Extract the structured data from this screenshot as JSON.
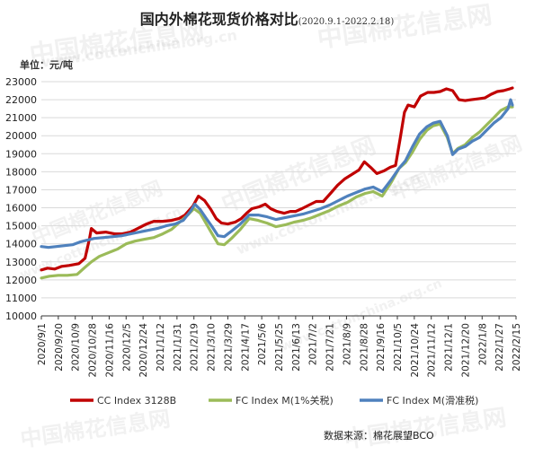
{
  "watermarks": [
    "中国棉花信息网",
    "www.cottonchina.org.cn"
  ],
  "title": "国内外棉花现货价格对比",
  "subtitle": "(2020.9.1-2022.2.18)",
  "unit_label": "单位：元/吨",
  "source": "数据来源：棉花展望BCO",
  "colors": {
    "cc": "#c00000",
    "fc1": "#9bbb59",
    "fcs": "#4f81bd",
    "axis": "#333333",
    "grid": "#d9d9d9"
  },
  "chart_data": {
    "type": "line",
    "title": "国内外棉花现货价格对比",
    "subtitle": "(2020.9.1-2022.2.18)",
    "ylabel": "单位：元/吨",
    "ylim": [
      10000,
      23000
    ],
    "yticks": [
      10000,
      11000,
      12000,
      13000,
      14000,
      15000,
      16000,
      17000,
      18000,
      19000,
      20000,
      21000,
      22000,
      23000
    ],
    "xlim": [
      "2020-09-01",
      "2022-02-15"
    ],
    "xticks": [
      "2020/9/1",
      "2020/9/20",
      "2020/10/9",
      "2020/10/28",
      "2020/11/16",
      "2020/12/5",
      "2020/12/24",
      "2021/1/12",
      "2021/1/31",
      "2021/2/19",
      "2021/3/10",
      "2021/3/29",
      "2021/4/17",
      "2021/5/6",
      "2021/5/25",
      "2021/6/13",
      "2021/7/2",
      "2021/7/21",
      "2021/8/9",
      "2021/8/28",
      "2021/9/16",
      "2021/10/5",
      "2021/10/24",
      "2021/11/12",
      "2021/12/1",
      "2021/12/20",
      "2022/1/8",
      "2022/1/27",
      "2022/2/15"
    ],
    "grid": "horizontal",
    "legend_position": "bottom",
    "series": [
      {
        "name": "CC Index 3128B",
        "color": "#c00000",
        "points": [
          [
            "2020-09-01",
            12550
          ],
          [
            "2020-09-08",
            12650
          ],
          [
            "2020-09-16",
            12600
          ],
          [
            "2020-09-24",
            12750
          ],
          [
            "2020-10-02",
            12800
          ],
          [
            "2020-10-13",
            12900
          ],
          [
            "2020-10-20",
            13200
          ],
          [
            "2020-10-25",
            14300
          ],
          [
            "2020-10-27",
            14850
          ],
          [
            "2020-11-02",
            14600
          ],
          [
            "2020-11-12",
            14650
          ],
          [
            "2020-11-22",
            14550
          ],
          [
            "2020-12-01",
            14550
          ],
          [
            "2020-12-10",
            14650
          ],
          [
            "2020-12-20",
            14900
          ],
          [
            "2020-12-28",
            15100
          ],
          [
            "2021-01-05",
            15250
          ],
          [
            "2021-01-15",
            15250
          ],
          [
            "2021-01-25",
            15300
          ],
          [
            "2021-02-02",
            15400
          ],
          [
            "2021-02-09",
            15600
          ],
          [
            "2021-02-18",
            16100
          ],
          [
            "2021-02-24",
            16650
          ],
          [
            "2021-03-03",
            16400
          ],
          [
            "2021-03-10",
            15900
          ],
          [
            "2021-03-16",
            15400
          ],
          [
            "2021-03-22",
            15150
          ],
          [
            "2021-03-29",
            15100
          ],
          [
            "2021-04-06",
            15200
          ],
          [
            "2021-04-13",
            15400
          ],
          [
            "2021-04-19",
            15700
          ],
          [
            "2021-04-25",
            15950
          ],
          [
            "2021-05-03",
            16050
          ],
          [
            "2021-05-10",
            16200
          ],
          [
            "2021-05-16",
            15950
          ],
          [
            "2021-05-23",
            15800
          ],
          [
            "2021-05-31",
            15700
          ],
          [
            "2021-06-07",
            15800
          ],
          [
            "2021-06-13",
            15800
          ],
          [
            "2021-06-20",
            15950
          ],
          [
            "2021-06-28",
            16150
          ],
          [
            "2021-07-06",
            16350
          ],
          [
            "2021-07-14",
            16350
          ],
          [
            "2021-07-22",
            16800
          ],
          [
            "2021-07-30",
            17250
          ],
          [
            "2021-08-07",
            17600
          ],
          [
            "2021-08-15",
            17850
          ],
          [
            "2021-08-23",
            18100
          ],
          [
            "2021-08-29",
            18550
          ],
          [
            "2021-09-05",
            18250
          ],
          [
            "2021-09-12",
            17900
          ],
          [
            "2021-09-20",
            18050
          ],
          [
            "2021-09-27",
            18250
          ],
          [
            "2021-10-03",
            18350
          ],
          [
            "2021-10-08",
            19800
          ],
          [
            "2021-10-13",
            21300
          ],
          [
            "2021-10-17",
            21700
          ],
          [
            "2021-10-24",
            21600
          ],
          [
            "2021-10-31",
            22200
          ],
          [
            "2021-11-08",
            22400
          ],
          [
            "2021-11-15",
            22400
          ],
          [
            "2021-11-22",
            22450
          ],
          [
            "2021-11-29",
            22600
          ],
          [
            "2021-12-06",
            22500
          ],
          [
            "2021-12-13",
            22000
          ],
          [
            "2021-12-20",
            21950
          ],
          [
            "2021-12-27",
            22000
          ],
          [
            "2022-01-04",
            22050
          ],
          [
            "2022-01-11",
            22100
          ],
          [
            "2022-01-18",
            22300
          ],
          [
            "2022-01-25",
            22450
          ],
          [
            "2022-02-01",
            22500
          ],
          [
            "2022-02-08",
            22600
          ],
          [
            "2022-02-11",
            22650
          ]
        ]
      },
      {
        "name": "FC Index M(1%关税)",
        "color": "#9bbb59",
        "points": [
          [
            "2020-09-01",
            12100
          ],
          [
            "2020-09-10",
            12200
          ],
          [
            "2020-09-20",
            12250
          ],
          [
            "2020-09-30",
            12250
          ],
          [
            "2020-10-11",
            12300
          ],
          [
            "2020-10-20",
            12700
          ],
          [
            "2020-10-27",
            13000
          ],
          [
            "2020-11-05",
            13300
          ],
          [
            "2020-11-15",
            13500
          ],
          [
            "2020-11-25",
            13700
          ],
          [
            "2020-12-05",
            14000
          ],
          [
            "2020-12-15",
            14150
          ],
          [
            "2020-12-25",
            14250
          ],
          [
            "2021-01-05",
            14350
          ],
          [
            "2021-01-15",
            14550
          ],
          [
            "2021-01-25",
            14800
          ],
          [
            "2021-02-03",
            15200
          ],
          [
            "2021-02-12",
            15600
          ],
          [
            "2021-02-19",
            15950
          ],
          [
            "2021-02-26",
            15700
          ],
          [
            "2021-03-05",
            15100
          ],
          [
            "2021-03-12",
            14500
          ],
          [
            "2021-03-18",
            14000
          ],
          [
            "2021-03-25",
            13950
          ],
          [
            "2021-04-02",
            14300
          ],
          [
            "2021-04-12",
            14800
          ],
          [
            "2021-04-22",
            15400
          ],
          [
            "2021-05-02",
            15300
          ],
          [
            "2021-05-12",
            15150
          ],
          [
            "2021-05-22",
            14950
          ],
          [
            "2021-06-01",
            15050
          ],
          [
            "2021-06-11",
            15200
          ],
          [
            "2021-06-21",
            15300
          ],
          [
            "2021-07-01",
            15450
          ],
          [
            "2021-07-11",
            15650
          ],
          [
            "2021-07-21",
            15850
          ],
          [
            "2021-07-31",
            16100
          ],
          [
            "2021-08-10",
            16300
          ],
          [
            "2021-08-20",
            16600
          ],
          [
            "2021-08-30",
            16800
          ],
          [
            "2021-09-08",
            16900
          ],
          [
            "2021-09-18",
            16650
          ],
          [
            "2021-09-28",
            17400
          ],
          [
            "2021-10-07",
            18200
          ],
          [
            "2021-10-14",
            18500
          ],
          [
            "2021-10-22",
            19100
          ],
          [
            "2021-10-30",
            19800
          ],
          [
            "2021-11-07",
            20300
          ],
          [
            "2021-11-14",
            20550
          ],
          [
            "2021-11-22",
            20650
          ],
          [
            "2021-11-30",
            19900
          ],
          [
            "2021-12-06",
            19000
          ],
          [
            "2021-12-12",
            19300
          ],
          [
            "2021-12-20",
            19500
          ],
          [
            "2021-12-28",
            19900
          ],
          [
            "2022-01-05",
            20200
          ],
          [
            "2022-01-13",
            20600
          ],
          [
            "2022-01-21",
            21000
          ],
          [
            "2022-01-29",
            21400
          ],
          [
            "2022-02-06",
            21600
          ],
          [
            "2022-02-11",
            21600
          ]
        ]
      },
      {
        "name": "FC Index M(滑准税)",
        "color": "#4f81bd",
        "points": [
          [
            "2020-09-01",
            13850
          ],
          [
            "2020-09-09",
            13800
          ],
          [
            "2020-09-18",
            13850
          ],
          [
            "2020-09-27",
            13900
          ],
          [
            "2020-10-06",
            13950
          ],
          [
            "2020-10-14",
            14100
          ],
          [
            "2020-10-22",
            14200
          ],
          [
            "2020-10-30",
            14300
          ],
          [
            "2020-11-10",
            14350
          ],
          [
            "2020-11-20",
            14400
          ],
          [
            "2020-11-30",
            14450
          ],
          [
            "2020-12-10",
            14550
          ],
          [
            "2020-12-20",
            14650
          ],
          [
            "2020-12-30",
            14750
          ],
          [
            "2021-01-09",
            14850
          ],
          [
            "2021-01-19",
            15000
          ],
          [
            "2021-01-29",
            15100
          ],
          [
            "2021-02-07",
            15300
          ],
          [
            "2021-02-15",
            15800
          ],
          [
            "2021-02-20",
            16200
          ],
          [
            "2021-02-26",
            15900
          ],
          [
            "2021-03-05",
            15400
          ],
          [
            "2021-03-12",
            14900
          ],
          [
            "2021-03-18",
            14450
          ],
          [
            "2021-03-25",
            14400
          ],
          [
            "2021-04-02",
            14700
          ],
          [
            "2021-04-12",
            15100
          ],
          [
            "2021-04-22",
            15600
          ],
          [
            "2021-05-02",
            15600
          ],
          [
            "2021-05-12",
            15500
          ],
          [
            "2021-05-22",
            15350
          ],
          [
            "2021-06-01",
            15450
          ],
          [
            "2021-06-11",
            15550
          ],
          [
            "2021-06-21",
            15650
          ],
          [
            "2021-07-01",
            15800
          ],
          [
            "2021-07-11",
            15950
          ],
          [
            "2021-07-21",
            16150
          ],
          [
            "2021-07-31",
            16400
          ],
          [
            "2021-08-10",
            16650
          ],
          [
            "2021-08-20",
            16850
          ],
          [
            "2021-08-30",
            17050
          ],
          [
            "2021-09-08",
            17150
          ],
          [
            "2021-09-18",
            16900
          ],
          [
            "2021-09-28",
            17550
          ],
          [
            "2021-10-07",
            18200
          ],
          [
            "2021-10-14",
            18600
          ],
          [
            "2021-10-22",
            19400
          ],
          [
            "2021-10-30",
            20100
          ],
          [
            "2021-11-07",
            20500
          ],
          [
            "2021-11-14",
            20700
          ],
          [
            "2021-11-22",
            20800
          ],
          [
            "2021-11-30",
            20000
          ],
          [
            "2021-12-06",
            18950
          ],
          [
            "2021-12-12",
            19250
          ],
          [
            "2021-12-20",
            19400
          ],
          [
            "2021-12-28",
            19700
          ],
          [
            "2022-01-05",
            19900
          ],
          [
            "2022-01-13",
            20300
          ],
          [
            "2022-01-21",
            20700
          ],
          [
            "2022-01-29",
            21000
          ],
          [
            "2022-02-06",
            21500
          ],
          [
            "2022-02-09",
            22000
          ],
          [
            "2022-02-11",
            21700
          ]
        ]
      }
    ]
  }
}
